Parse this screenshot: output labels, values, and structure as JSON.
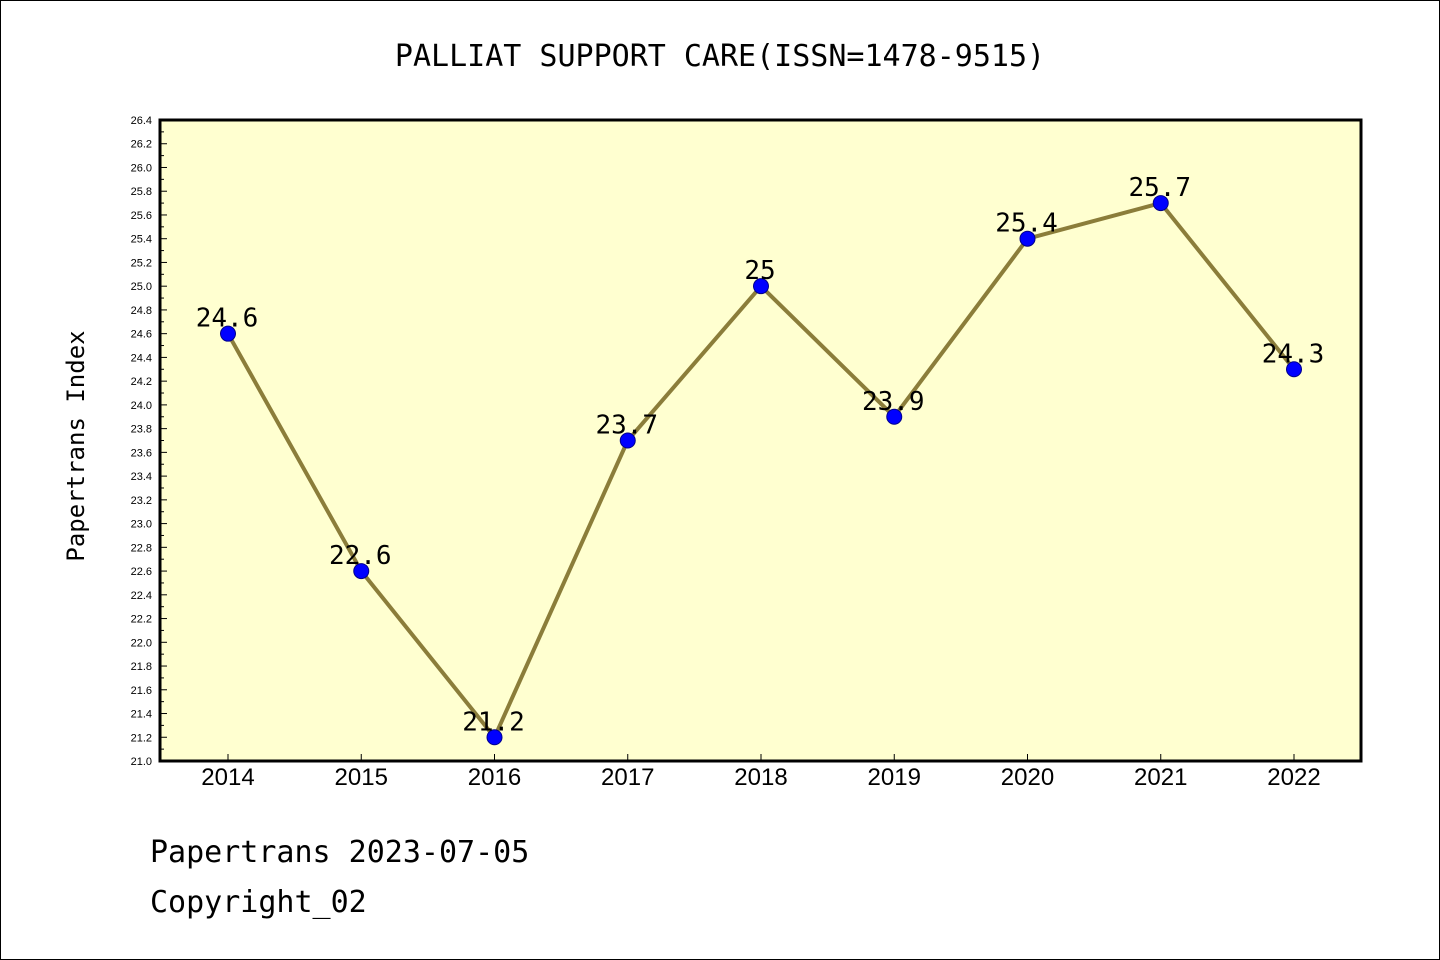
{
  "chart_data": {
    "type": "line",
    "title": "PALLIAT SUPPORT CARE(ISSN=1478-9515)",
    "xlabel": "",
    "ylabel": "Papertrans Index",
    "categories": [
      "2014",
      "2015",
      "2016",
      "2017",
      "2018",
      "2019",
      "2020",
      "2021",
      "2022"
    ],
    "values": [
      24.6,
      22.6,
      21.2,
      23.7,
      25.0,
      23.9,
      25.4,
      25.7,
      24.3
    ],
    "data_labels": [
      "24.6",
      "22.6",
      "21.2",
      "23.7",
      "25",
      "23.9",
      "25.4",
      "25.7",
      "24.3"
    ],
    "ylim": [
      21.0,
      26.4
    ],
    "yticks": [
      "21.0",
      "21.2",
      "21.4",
      "21.6",
      "21.8",
      "22.0",
      "22.2",
      "22.4",
      "22.6",
      "22.8",
      "23.0",
      "23.2",
      "23.4",
      "23.6",
      "23.8",
      "24.0",
      "24.2",
      "24.4",
      "24.6",
      "24.8",
      "25.0",
      "25.2",
      "25.4",
      "25.6",
      "25.8",
      "26.0",
      "26.2",
      "26.4"
    ],
    "grid": false,
    "legend": "none",
    "colors": {
      "plot_background": "#ffffd0",
      "line": "#8b7d3a",
      "marker": "#0000ff",
      "axis": "#000000"
    }
  },
  "footer": {
    "line1": "Papertrans 2023-07-05",
    "line2": "Copyright_02"
  }
}
